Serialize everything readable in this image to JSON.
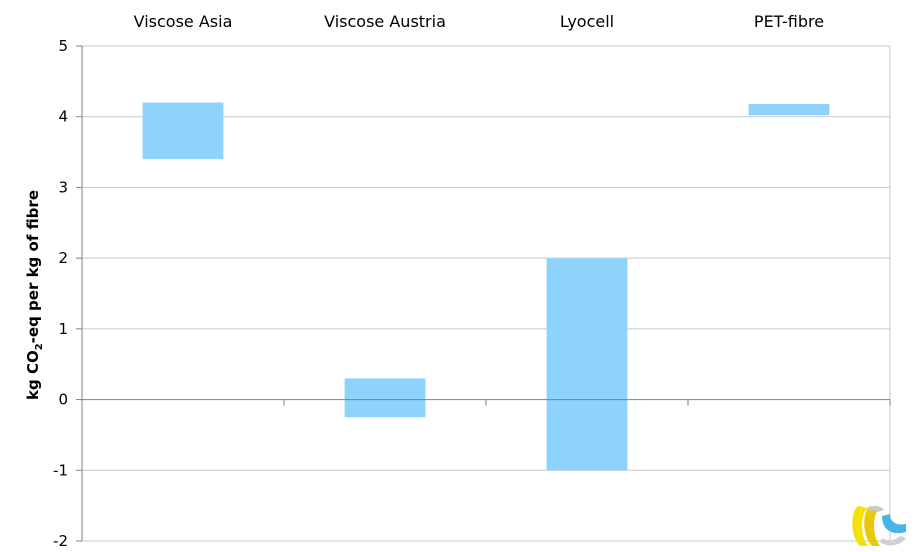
{
  "chart_data": {
    "type": "bar",
    "subtype": "floating",
    "categories": [
      "Viscose Asia",
      "Viscose Austria",
      "Lyocell",
      "PET-fibre"
    ],
    "series": [
      {
        "ranges": [
          [
            3.4,
            4.2
          ],
          [
            -0.25,
            0.3
          ],
          [
            -1.0,
            2.0
          ],
          [
            4.02,
            4.18
          ]
        ]
      }
    ],
    "ylabel_parts": {
      "pre": "kg CO",
      "sub": "2",
      "post": "-eq per kg of fibre"
    },
    "ylim": [
      -2,
      5
    ],
    "yticks": [
      -2,
      -1,
      0,
      1,
      2,
      3,
      4,
      5
    ],
    "category_labels_position": "top",
    "grid": true,
    "legend": "none",
    "colors": {
      "bar": "#8ed3fb",
      "grid": "#c8c8c8",
      "axis": "#808080"
    }
  },
  "logo": {
    "icon": "yellow-blue-swirl-logo"
  }
}
